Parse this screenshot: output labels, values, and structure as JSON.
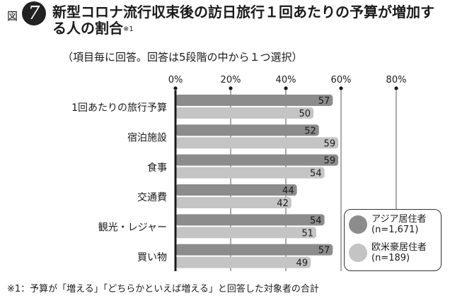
{
  "figure": {
    "label": "図",
    "number": "7"
  },
  "title": "新型コロナ流行収束後の訪日旅行１回あたりの予算が増加する人の割合",
  "title_note": "※1",
  "subtitle": "（項目毎に回答。回答は5段階の中から１つ選択）",
  "footnote": "※1：予算が「増える」「どちらかといえば増える」と回答した対象者の合計",
  "colors": {
    "asia": "#8c8c8c",
    "west": "#c4c4c4",
    "axis": "#1a1a1a",
    "grid": "#555555"
  },
  "chart_data": {
    "type": "bar",
    "orientation": "horizontal",
    "categories": [
      "1回あたりの旅行予算",
      "宿泊施設",
      "食事",
      "交通費",
      "観光・レジャー",
      "買い物"
    ],
    "series": [
      {
        "name": "アジア居住者",
        "sub": "(n=1,671)",
        "values": [
          57,
          52,
          59,
          44,
          54,
          57
        ]
      },
      {
        "name": "欧米豪居住者",
        "sub": "(n=189)",
        "values": [
          50,
          59,
          54,
          42,
          51,
          49
        ]
      }
    ],
    "xticks": [
      "0%",
      "20%",
      "40%",
      "60%",
      "80%"
    ],
    "xlim": [
      0,
      80
    ],
    "grid": true,
    "legend": "bottom-right"
  }
}
